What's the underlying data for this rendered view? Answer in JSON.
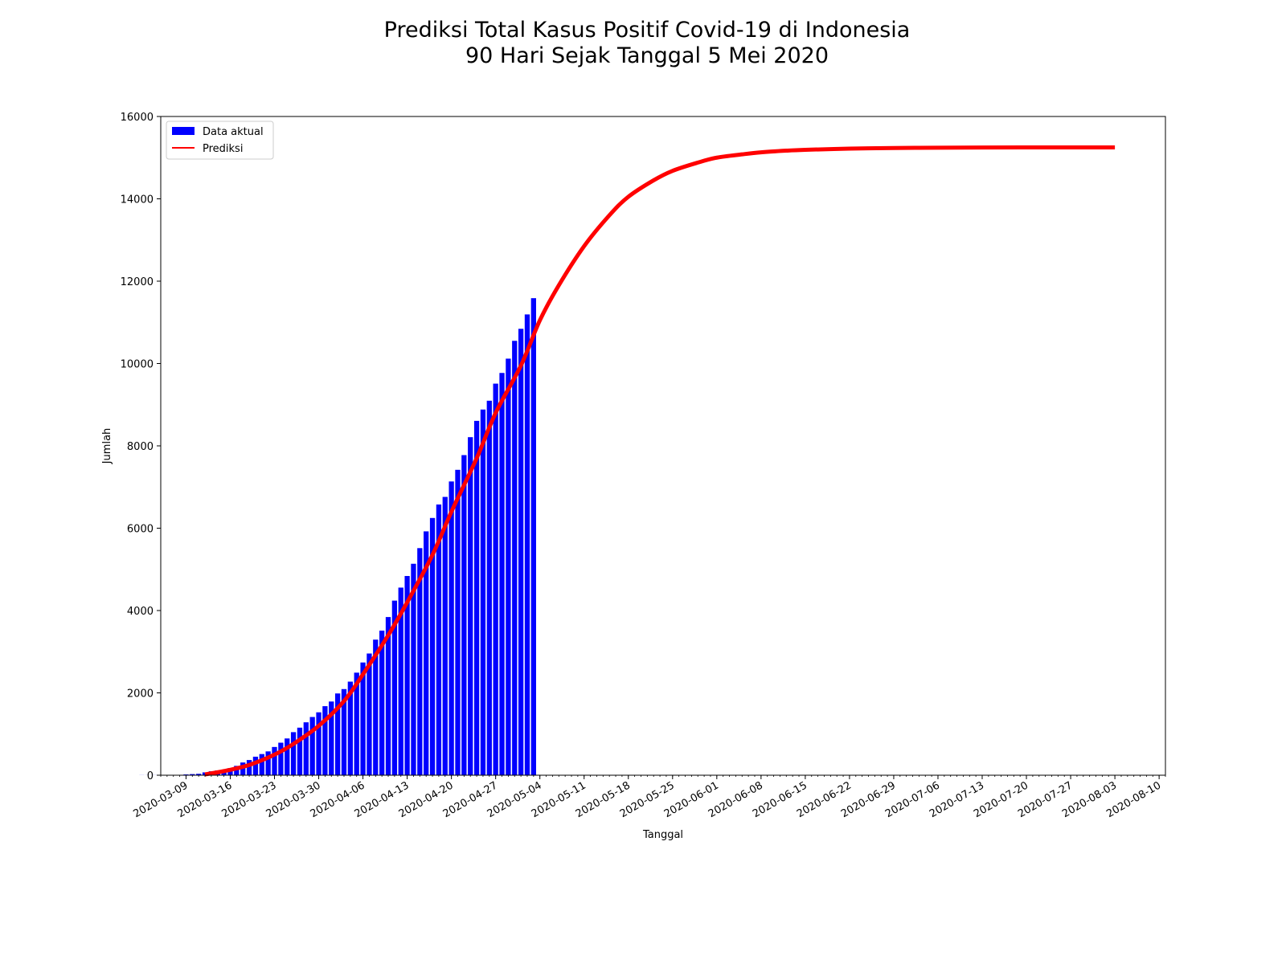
{
  "chart_data": {
    "type": "bar",
    "title": "Prediksi Total Kasus Positif Covid-19 di Indonesia",
    "subtitle": "90 Hari Sejak Tanggal 5 Mei 2020",
    "xlabel": "Tanggal",
    "ylabel": "Jumlah",
    "xlim": [
      "2020-03-05",
      "2020-08-11"
    ],
    "ylim": [
      0,
      16000
    ],
    "x_ticks": [
      "2020-03-09",
      "2020-03-16",
      "2020-03-23",
      "2020-03-30",
      "2020-04-06",
      "2020-04-13",
      "2020-04-20",
      "2020-04-27",
      "2020-05-04",
      "2020-05-11",
      "2020-05-18",
      "2020-05-25",
      "2020-06-01",
      "2020-06-08",
      "2020-06-15",
      "2020-06-22",
      "2020-06-29",
      "2020-07-06",
      "2020-07-13",
      "2020-07-20",
      "2020-07-27",
      "2020-08-03",
      "2020-08-10"
    ],
    "y_ticks": [
      "0",
      "2000",
      "4000",
      "6000",
      "8000",
      "10000",
      "12000",
      "14000",
      "16000"
    ],
    "legend_position": "top-left",
    "grid": false,
    "series": [
      {
        "name": "Data aktual",
        "type": "bar",
        "color": "#0000ff",
        "start_date": "2020-03-02",
        "values": [
          2,
          2,
          2,
          2,
          4,
          4,
          6,
          19,
          27,
          34,
          69,
          96,
          117,
          134,
          172,
          227,
          309,
          369,
          450,
          514,
          579,
          686,
          790,
          893,
          1046,
          1155,
          1285,
          1414,
          1528,
          1677,
          1790,
          1986,
          2092,
          2273,
          2491,
          2738,
          2956,
          3293,
          3512,
          3842,
          4241,
          4557,
          4839,
          5136,
          5516,
          5923,
          6248,
          6575,
          6760,
          7135,
          7418,
          7775,
          8211,
          8607,
          8882,
          9096,
          9511,
          9771,
          10118,
          10551,
          10843,
          11192,
          11587
        ]
      },
      {
        "name": "Prediksi",
        "type": "line",
        "color": "#ff0000",
        "x": [
          "2020-03-12",
          "2020-03-15",
          "2020-03-19",
          "2020-03-23",
          "2020-03-26",
          "2020-03-30",
          "2020-04-03",
          "2020-04-06",
          "2020-04-10",
          "2020-04-13",
          "2020-04-17",
          "2020-04-20",
          "2020-04-24",
          "2020-04-27",
          "2020-05-01",
          "2020-05-04",
          "2020-05-07",
          "2020-05-11",
          "2020-05-15",
          "2020-05-18",
          "2020-05-22",
          "2020-05-25",
          "2020-05-29",
          "2020-06-01",
          "2020-06-05",
          "2020-06-08",
          "2020-06-12",
          "2020-06-15",
          "2020-06-22",
          "2020-06-29",
          "2020-07-06",
          "2020-07-13",
          "2020-07-20",
          "2020-07-27",
          "2020-08-03"
        ],
        "values": [
          20,
          100,
          250,
          500,
          760,
          1200,
          1800,
          2450,
          3400,
          4200,
          5350,
          6400,
          7700,
          8800,
          9950,
          11050,
          11900,
          12850,
          13600,
          14050,
          14450,
          14680,
          14880,
          15000,
          15080,
          15130,
          15170,
          15190,
          15220,
          15235,
          15242,
          15246,
          15248,
          15249,
          15250
        ]
      }
    ]
  }
}
